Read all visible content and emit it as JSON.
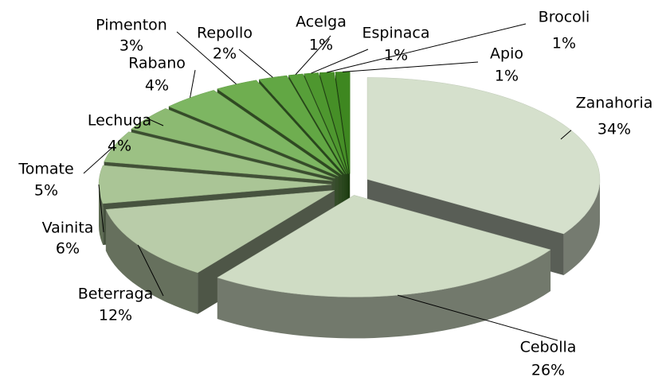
{
  "chart_data": {
    "type": "pie3d",
    "categories": [
      "Zanahoria",
      "Cebolla",
      "Beterraga",
      "Vainita",
      "Tomate",
      "Lechuga",
      "Rabano",
      "Pimenton",
      "Repollo",
      "Acelga",
      "Espinaca",
      "Brocoli",
      "Apio"
    ],
    "values": [
      34,
      26,
      12,
      6,
      5,
      4,
      4,
      3,
      2,
      1,
      1,
      1,
      1
    ],
    "value_labels": [
      "34%",
      "26%",
      "12%",
      "6%",
      "5%",
      "4%",
      "4%",
      "3%",
      "2%",
      "1%",
      "1%",
      "1%",
      "1%"
    ],
    "colors": [
      "#d5e0cc",
      "#cfdcc4",
      "#b9cca9",
      "#aac596",
      "#9cc184",
      "#8cba72",
      "#7db662",
      "#6fae50",
      "#62a744",
      "#579f39",
      "#4e972f",
      "#468f27",
      "#3e8720"
    ]
  }
}
